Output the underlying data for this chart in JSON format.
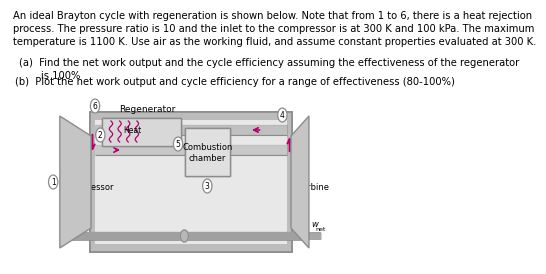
{
  "bg_color": "#ffffff",
  "text_color": "#000000",
  "arrow_color": "#b5006b",
  "title_text": "An ideal Brayton cycle with regeneration is shown below. Note that from 1 to 6, there is a heat rejection\nprocess. The pressure ratio is 10 and the inlet to the compressor is at 300 K and 100 kPa. The maximum\ntemperature is 1100 K. Use air as the working fluid, and assume constant properties evaluated at 300 K.",
  "part_a": "(a)  Find the net work output and the cycle efficiency assuming the effectiveness of the regenerator\n       is 100%",
  "part_b": "(b)  Plot the net work output and cycle efficiency for a range of effectiveness (80-100%)",
  "label_regenerator": "Regenerator",
  "label_combustion": "Combustion\nchamber",
  "label_compressor": "Compressor",
  "label_turbine": "Turbine",
  "label_heat": "Heat",
  "label_wnet": "w",
  "label_wnet_sub": "net",
  "node_labels": [
    "1",
    "2",
    "3",
    "4",
    "5",
    "6"
  ],
  "font_size_main": 7.2,
  "font_size_diagram": 6.5
}
